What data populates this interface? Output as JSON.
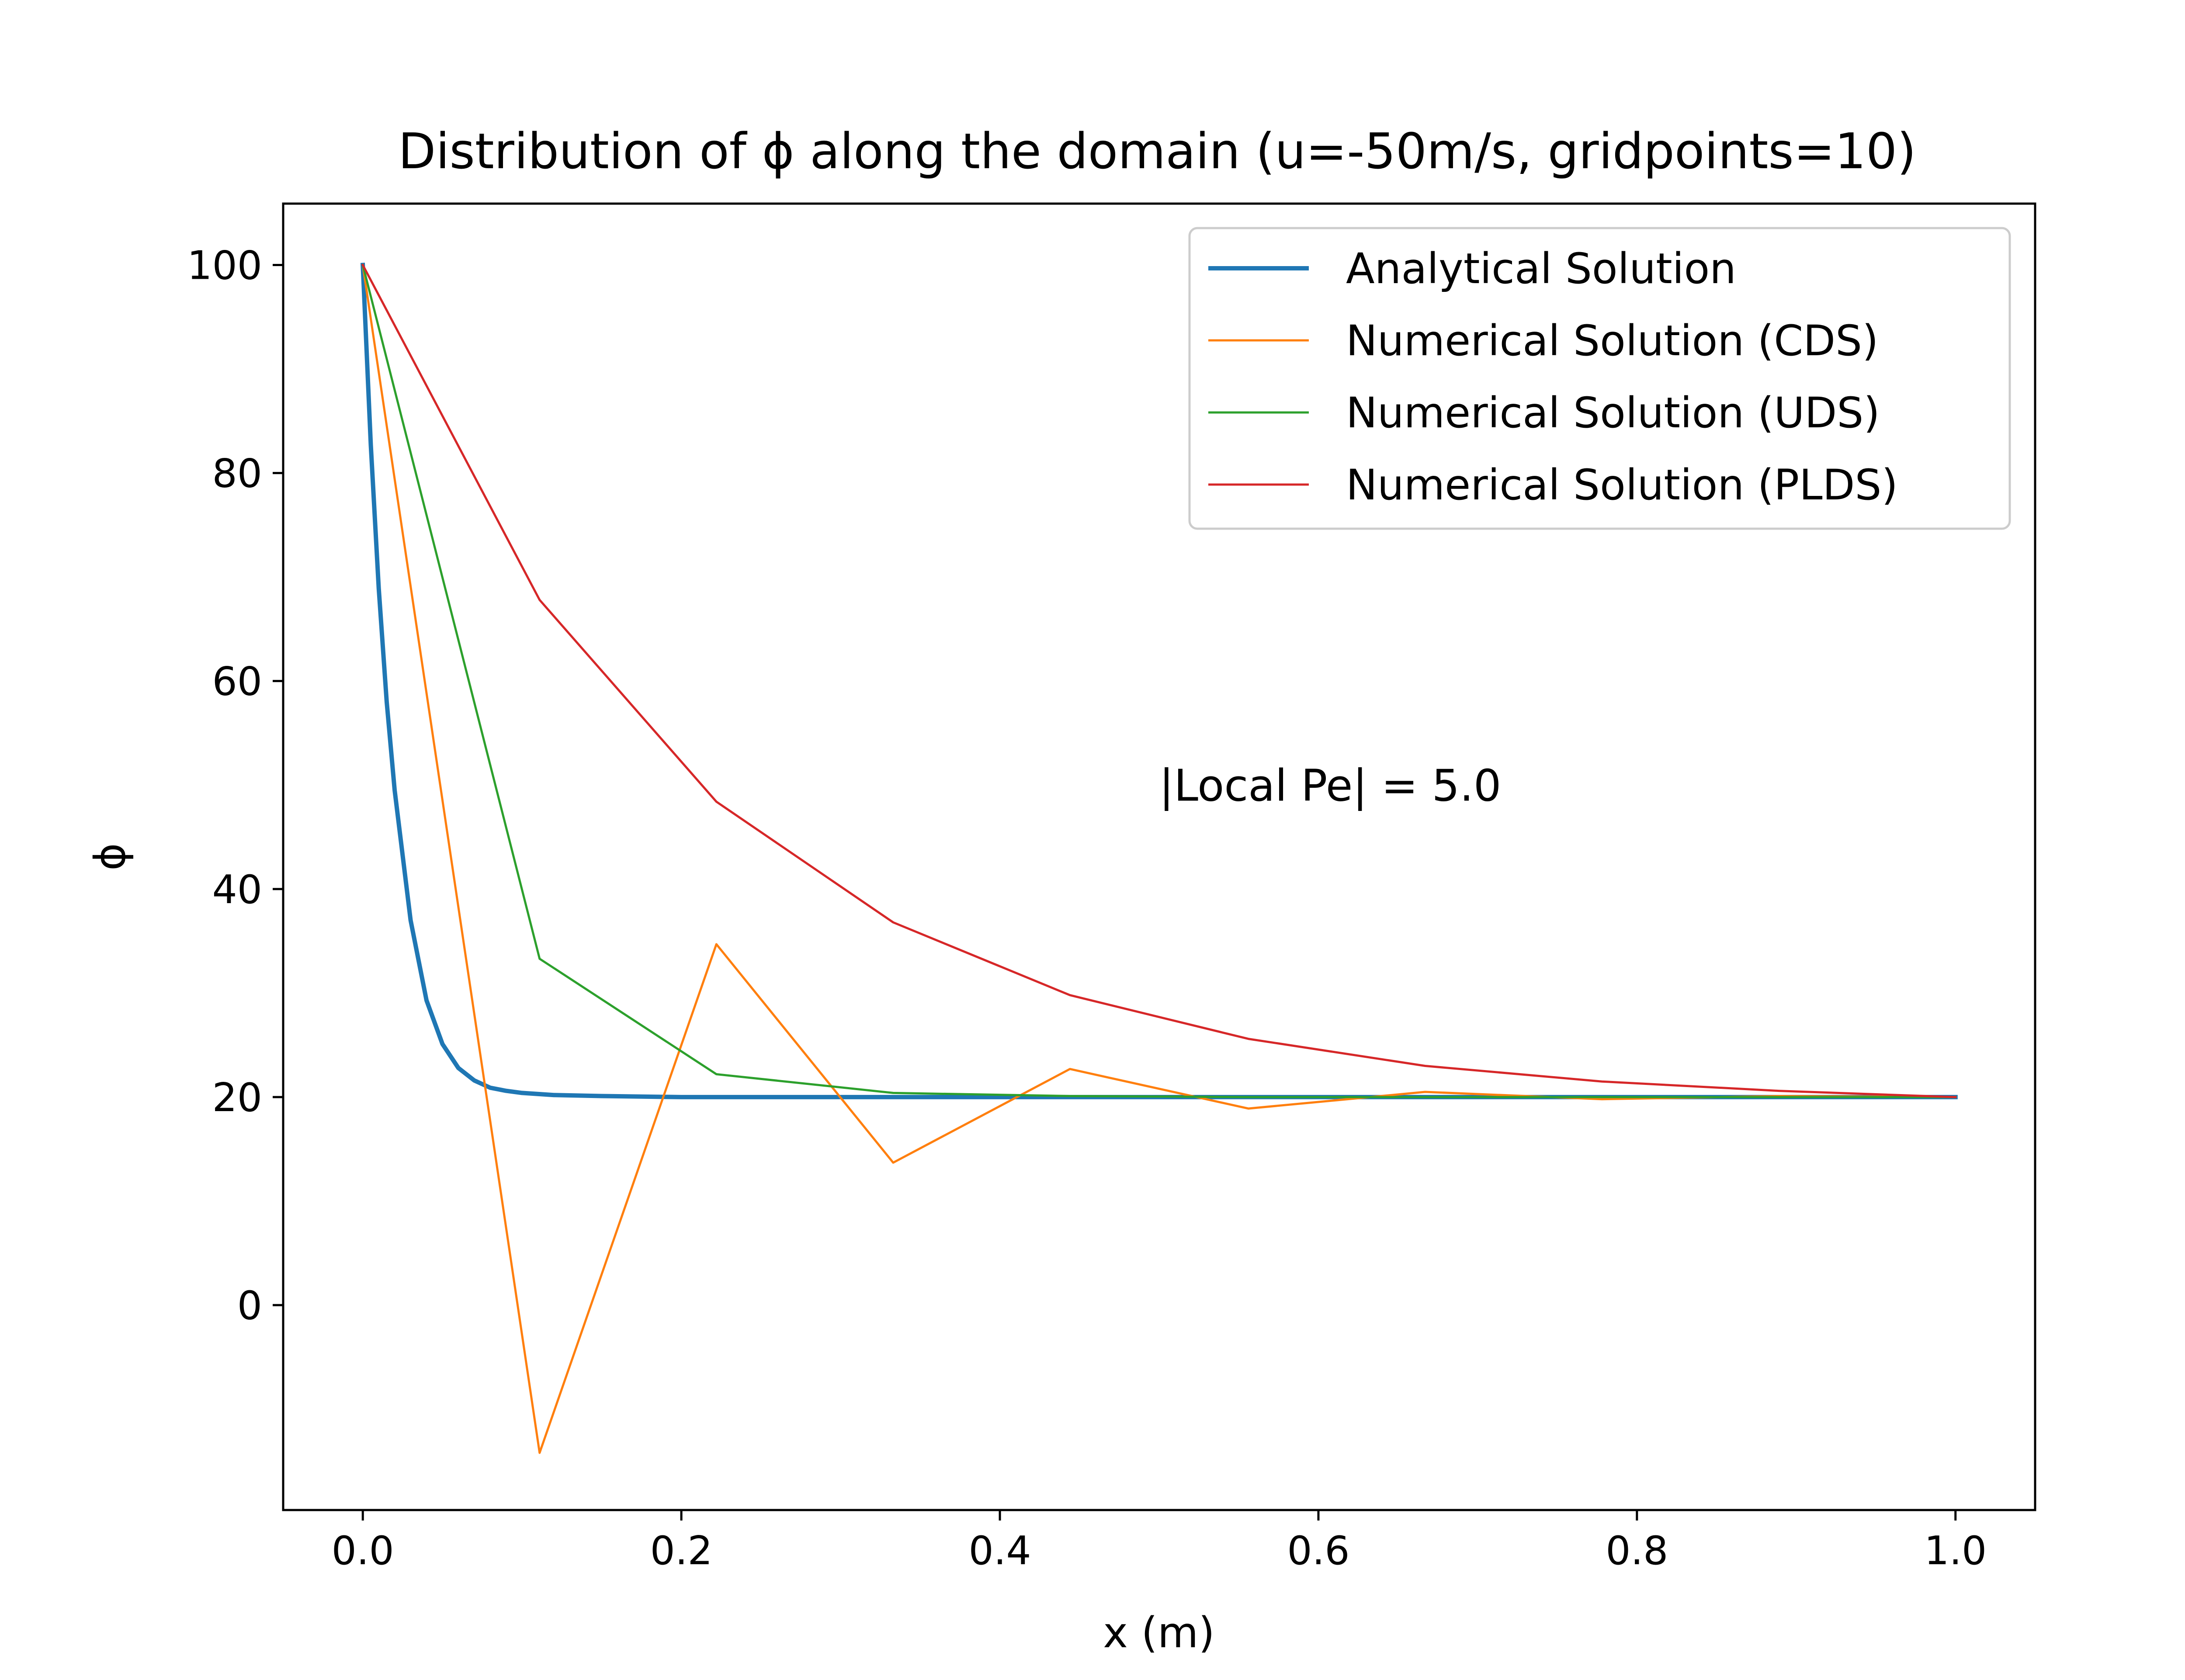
{
  "chart_data": {
    "type": "line",
    "title": "Distribution of ϕ along the domain (u=-50m/s, gridpoints=10)",
    "xlabel": "x (m)",
    "ylabel": "ϕ",
    "xlim": [
      -0.05,
      1.05
    ],
    "ylim": [
      -19.7,
      105.9
    ],
    "xticks": [
      0.0,
      0.2,
      0.4,
      0.6,
      0.8,
      1.0
    ],
    "xtick_labels": [
      "0.0",
      "0.2",
      "0.4",
      "0.6",
      "0.8",
      "1.0"
    ],
    "yticks": [
      0,
      20,
      40,
      60,
      80,
      100
    ],
    "ytick_labels": [
      "0",
      "20",
      "40",
      "60",
      "80",
      "100"
    ],
    "grid": false,
    "legend_position": "top-right",
    "annotation": "|Local Pe| = 5.0",
    "annotation_pos": [
      0.5,
      50
    ],
    "series": [
      {
        "name": "Analytical Solution",
        "color": "#1f77b4",
        "line_width": "thick",
        "x": [
          0.0,
          0.005,
          0.01,
          0.015,
          0.02,
          0.03,
          0.04,
          0.05,
          0.06,
          0.07,
          0.08,
          0.09,
          0.1,
          0.12,
          0.15,
          0.2,
          0.3,
          0.5,
          0.7,
          1.0
        ],
        "y": [
          100.0,
          82.7,
          68.9,
          58.0,
          49.5,
          37.0,
          29.3,
          25.1,
          22.8,
          21.6,
          20.9,
          20.6,
          20.4,
          20.2,
          20.1,
          20.0,
          20.0,
          20.0,
          20.0,
          20.0
        ]
      },
      {
        "name": "Numerical Solution (CDS)",
        "color": "#ff7f0e",
        "line_width": "thin",
        "x": [
          0.0,
          0.111,
          0.222,
          0.333,
          0.444,
          0.556,
          0.667,
          0.778,
          0.889,
          1.0
        ],
        "y": [
          100.0,
          -14.2,
          34.7,
          13.7,
          22.7,
          18.9,
          20.5,
          19.8,
          20.1,
          20.0
        ]
      },
      {
        "name": "Numerical Solution (UDS)",
        "color": "#2ca02c",
        "line_width": "thin",
        "x": [
          0.0,
          0.111,
          0.222,
          0.333,
          0.444,
          0.556,
          0.667,
          0.778,
          0.889,
          1.0
        ],
        "y": [
          100.0,
          33.3,
          22.2,
          20.4,
          20.1,
          20.0,
          20.0,
          20.0,
          20.0,
          20.0
        ]
      },
      {
        "name": "Numerical Solution (PLDS)",
        "color": "#d62728",
        "line_width": "thin",
        "x": [
          0.0,
          0.111,
          0.222,
          0.333,
          0.444,
          0.556,
          0.667,
          0.778,
          0.889,
          1.0
        ],
        "y": [
          100.0,
          67.8,
          48.4,
          36.8,
          29.8,
          25.6,
          23.0,
          21.5,
          20.6,
          20.0
        ]
      }
    ]
  }
}
